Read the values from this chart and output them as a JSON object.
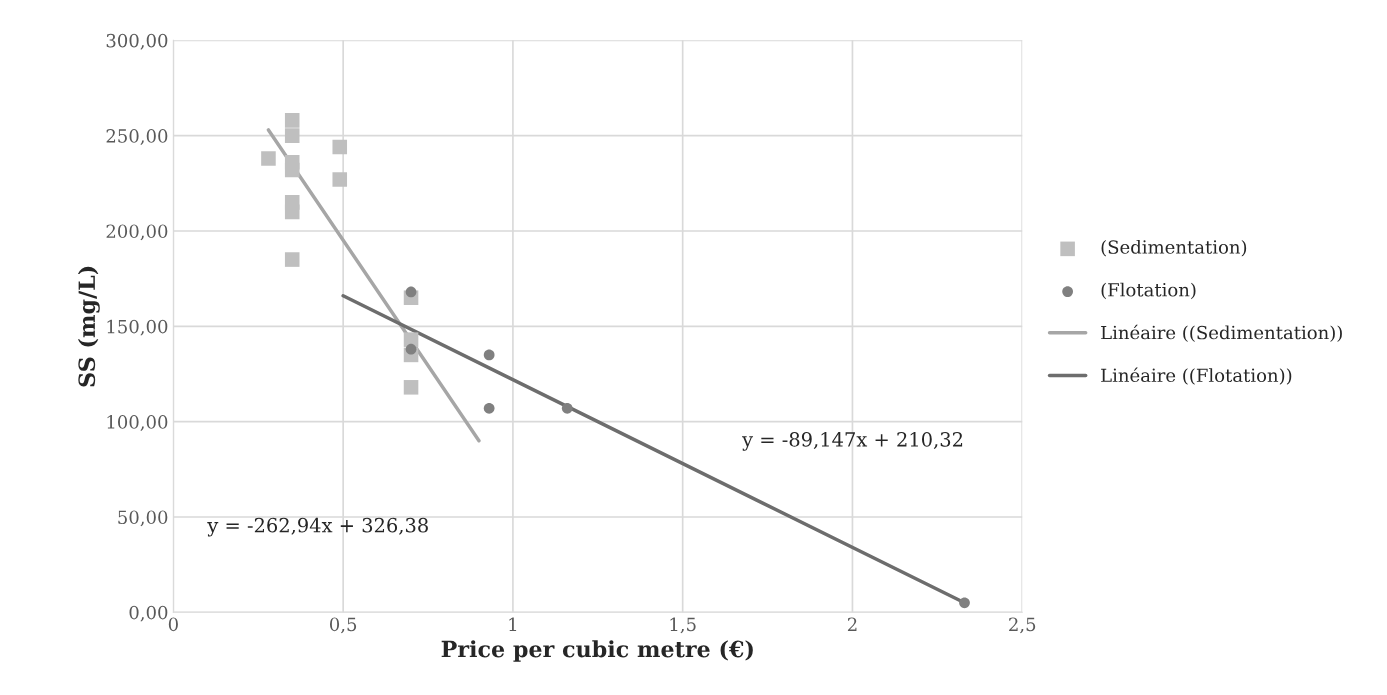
{
  "chart_data": {
    "type": "scatter",
    "xlabel": "Price per cubic metre (€)",
    "ylabel": "SS (mg/L)",
    "xlim": [
      0,
      2.5
    ],
    "xticks": [
      0,
      {
        "value": 0.5,
        "label": "0,5"
      },
      1,
      {
        "value": 1.5,
        "label": "1,5"
      },
      2,
      {
        "value": 2.5,
        "label": "2,5"
      }
    ],
    "ylim": [
      0,
      300
    ],
    "yticks": [
      {
        "value": 0,
        "label": "0,00"
      },
      {
        "value": 50,
        "label": "50,00"
      },
      {
        "value": 100,
        "label": "100,00"
      },
      {
        "value": 150,
        "label": "150,00"
      },
      {
        "value": 200,
        "label": "200,00"
      },
      {
        "value": 250,
        "label": "250,00"
      },
      {
        "value": 300,
        "label": "300,00"
      }
    ],
    "grid": true,
    "legend": "right",
    "series": [
      {
        "name": "(Sedimentation)",
        "marker": "square",
        "color": "#bfbfbf",
        "x": [
          0.28,
          0.35,
          0.35,
          0.35,
          0.35,
          0.35,
          0.35,
          0.35,
          0.49,
          0.49,
          0.7,
          0.7,
          0.7,
          0.7
        ],
        "values": [
          238,
          258,
          250,
          236,
          232,
          215,
          210,
          185,
          244,
          227,
          165,
          143,
          135,
          118
        ]
      },
      {
        "name": "(Flotation)",
        "marker": "circle",
        "color": "#808080",
        "x": [
          0.7,
          0.7,
          0.93,
          0.93,
          1.16,
          2.33
        ],
        "values": [
          168,
          138,
          135,
          107,
          107,
          5
        ]
      },
      {
        "name": "Linéaire ((Sedimentation))",
        "type": "line",
        "marker": "none",
        "color": "#a6a6a6",
        "x": [
          0.28,
          0.9
        ],
        "values": [
          253,
          90
        ]
      },
      {
        "name": "Linéaire ((Flotation))",
        "type": "line",
        "marker": "none",
        "color": "#6d6d6d",
        "x": [
          0.5,
          2.33
        ],
        "values": [
          166,
          5
        ]
      }
    ],
    "annotations": [
      "y = -262,94x + 326,38",
      "y = -89,147x + 210,32"
    ]
  }
}
